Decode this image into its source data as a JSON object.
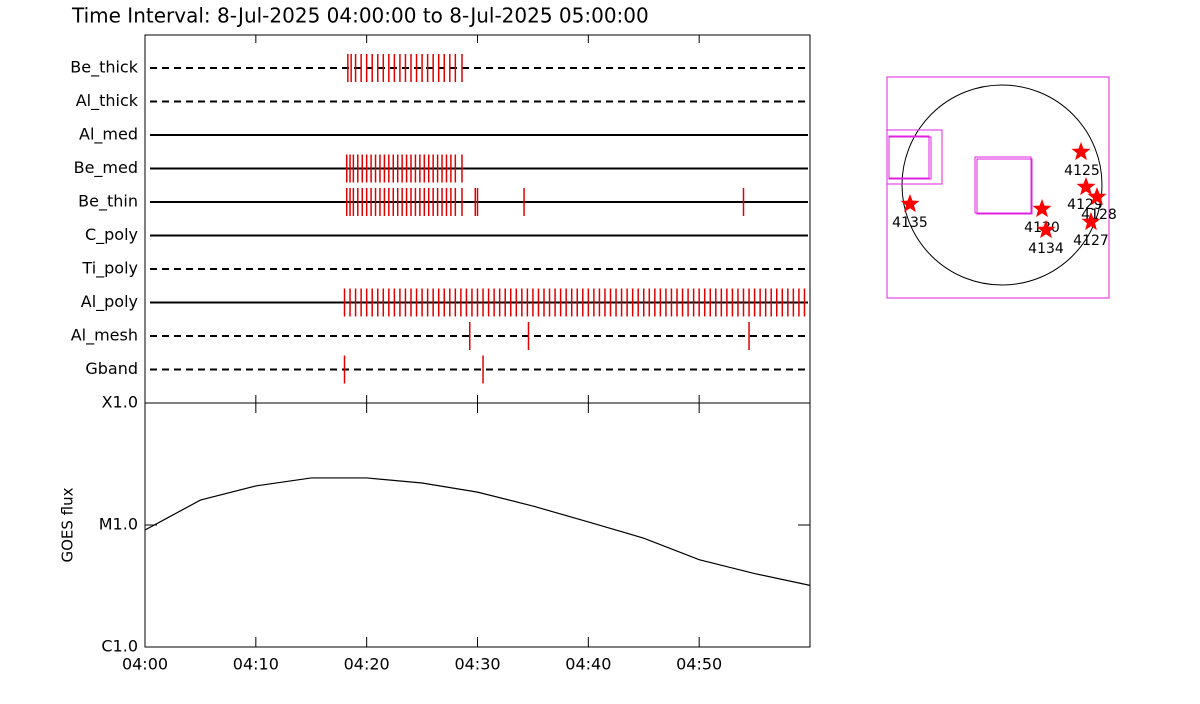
{
  "chart_data": [
    {
      "type": "timeline",
      "title": "Time Interval:  8-Jul-2025 04:00:00 to  8-Jul-2025 05:00:00",
      "xlim": [
        0,
        60
      ],
      "xticks": [
        {
          "value": 0,
          "label": "04:00"
        },
        {
          "value": 10,
          "label": "04:10"
        },
        {
          "value": 20,
          "label": "04:20"
        },
        {
          "value": 30,
          "label": "04:30"
        },
        {
          "value": 40,
          "label": "04:40"
        },
        {
          "value": 50,
          "label": "04:50"
        }
      ],
      "color": "#e00000",
      "series": [
        {
          "name": "Be_thick",
          "line_style": "dashed",
          "x": [
            18.3,
            18.6,
            19.0,
            19.5,
            20.0,
            20.5,
            21.0,
            21.5,
            22.0,
            22.5,
            23.0,
            23.5,
            24.0,
            24.5,
            25.0,
            25.5,
            26.0,
            26.5,
            27.0,
            27.5,
            28.0,
            28.6
          ]
        },
        {
          "name": "Al_thick",
          "line_style": "dashed",
          "x": []
        },
        {
          "name": "Al_med",
          "line_style": "solid",
          "x": []
        },
        {
          "name": "Be_med",
          "line_style": "solid",
          "x": [
            18.2,
            18.5,
            18.8,
            19.2,
            19.6,
            20.0,
            20.4,
            20.8,
            21.2,
            21.6,
            22.0,
            22.4,
            22.8,
            23.2,
            23.6,
            24.0,
            24.4,
            24.8,
            25.2,
            25.6,
            26.0,
            26.4,
            26.8,
            27.2,
            27.6,
            28.0,
            28.6
          ]
        },
        {
          "name": "Be_thin",
          "line_style": "solid",
          "x": [
            18.2,
            18.5,
            18.8,
            19.2,
            19.6,
            20.0,
            20.4,
            20.8,
            21.2,
            21.6,
            22.0,
            22.4,
            22.8,
            23.2,
            23.6,
            24.0,
            24.4,
            24.8,
            25.2,
            25.6,
            26.0,
            26.4,
            26.8,
            27.2,
            27.6,
            28.0,
            28.6,
            29.8,
            30.0,
            34.2,
            54.0
          ]
        },
        {
          "name": "C_poly",
          "line_style": "solid",
          "x": []
        },
        {
          "name": "Ti_poly",
          "line_style": "dashed",
          "x": []
        },
        {
          "name": "Al_poly",
          "line_style": "solid",
          "x": [
            18,
            18.5,
            19,
            19.5,
            20,
            20.5,
            21,
            21.5,
            22,
            22.5,
            23,
            23.5,
            24,
            24.5,
            25,
            25.5,
            26,
            26.5,
            27,
            27.5,
            28,
            28.5,
            29,
            29.5,
            30,
            30.5,
            31,
            31.5,
            32,
            32.5,
            33,
            33.5,
            34,
            34.5,
            35,
            35.5,
            36,
            36.5,
            37,
            37.5,
            38,
            38.5,
            39,
            39.5,
            40,
            40.5,
            41,
            41.5,
            42,
            42.5,
            43,
            43.5,
            44,
            44.5,
            45,
            45.5,
            46,
            46.5,
            47,
            47.5,
            48,
            48.5,
            49,
            49.5,
            50,
            50.5,
            51,
            51.5,
            52,
            52.5,
            53,
            53.5,
            54,
            54.5,
            55,
            55.5,
            56,
            56.5,
            57,
            57.5,
            58,
            58.5,
            59,
            59.5
          ]
        },
        {
          "name": "Al_mesh",
          "line_style": "dashed",
          "x": [
            29.3,
            34.6,
            54.5
          ]
        },
        {
          "name": "Gband",
          "line_style": "dashed",
          "x": [
            18.0,
            30.5
          ]
        }
      ]
    },
    {
      "type": "line",
      "ylabel": "GOES flux",
      "log_y": true,
      "color": "#000000",
      "xlim": [
        0,
        60
      ],
      "xticks": [
        {
          "value": 0,
          "label": "04:00"
        },
        {
          "value": 10,
          "label": "04:10"
        },
        {
          "value": 20,
          "label": "04:20"
        },
        {
          "value": 30,
          "label": "04:30"
        },
        {
          "value": 40,
          "label": "04:40"
        },
        {
          "value": 50,
          "label": "04:50"
        }
      ],
      "ylim": [
        1e-06,
        0.0001
      ],
      "yticks": [
        {
          "value": 1e-06,
          "label": "C1.0"
        },
        {
          "value": 1e-05,
          "label": "M1.0"
        },
        {
          "value": 0.0001,
          "label": "X1.0"
        }
      ],
      "x": [
        0,
        2,
        5,
        10,
        15,
        20,
        25,
        30,
        35,
        40,
        45,
        50,
        55,
        60
      ],
      "values": [
        9.1e-06,
        1.14e-05,
        1.6e-05,
        2.09e-05,
        2.43e-05,
        2.43e-05,
        2.21e-05,
        1.86e-05,
        1.43e-05,
        1.06e-05,
        7.8e-06,
        5.2e-06,
        4e-06,
        3.2e-06
      ]
    }
  ],
  "map": {
    "regions": [
      "4125",
      "4129",
      "4128",
      "4130",
      "4134",
      "4127",
      "4135"
    ]
  }
}
